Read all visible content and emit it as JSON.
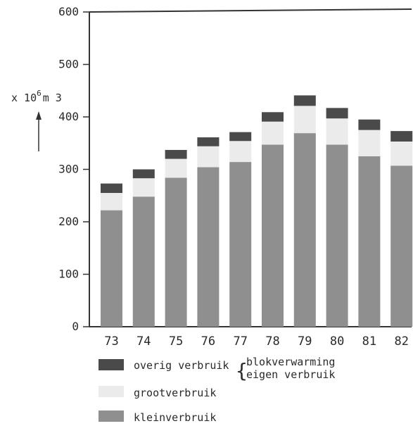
{
  "chart_data": {
    "type": "bar",
    "stacked": true,
    "ylabel_prefix": "x 10",
    "ylabel_exp": "6",
    "ylabel_unit": "m 3",
    "ylim": [
      0,
      600
    ],
    "yticks": [
      "0",
      "100",
      "200",
      "300",
      "400",
      "500",
      "600"
    ],
    "categories": [
      "73",
      "74",
      "75",
      "76",
      "77",
      "78",
      "79",
      "80",
      "81",
      "82"
    ],
    "series": [
      {
        "name": "kleinverbruik",
        "values": [
          222,
          248,
          284,
          304,
          314,
          347,
          369,
          347,
          325,
          307
        ],
        "color": "#8f8f8f"
      },
      {
        "name": "grootverbruik",
        "values": [
          33,
          35,
          36,
          40,
          40,
          44,
          52,
          50,
          50,
          46
        ],
        "color": "#ebebeb"
      },
      {
        "name": "overig verbruik",
        "values": [
          18,
          17,
          17,
          17,
          17,
          18,
          20,
          20,
          20,
          20
        ],
        "color": "#4a4a4a"
      }
    ],
    "legend": {
      "overig": "overig verbruik",
      "overig_sub1": "blokverwarming",
      "overig_sub2": "eigen verbruik",
      "groot": "grootverbruik",
      "klein": "kleinverbruik"
    }
  }
}
